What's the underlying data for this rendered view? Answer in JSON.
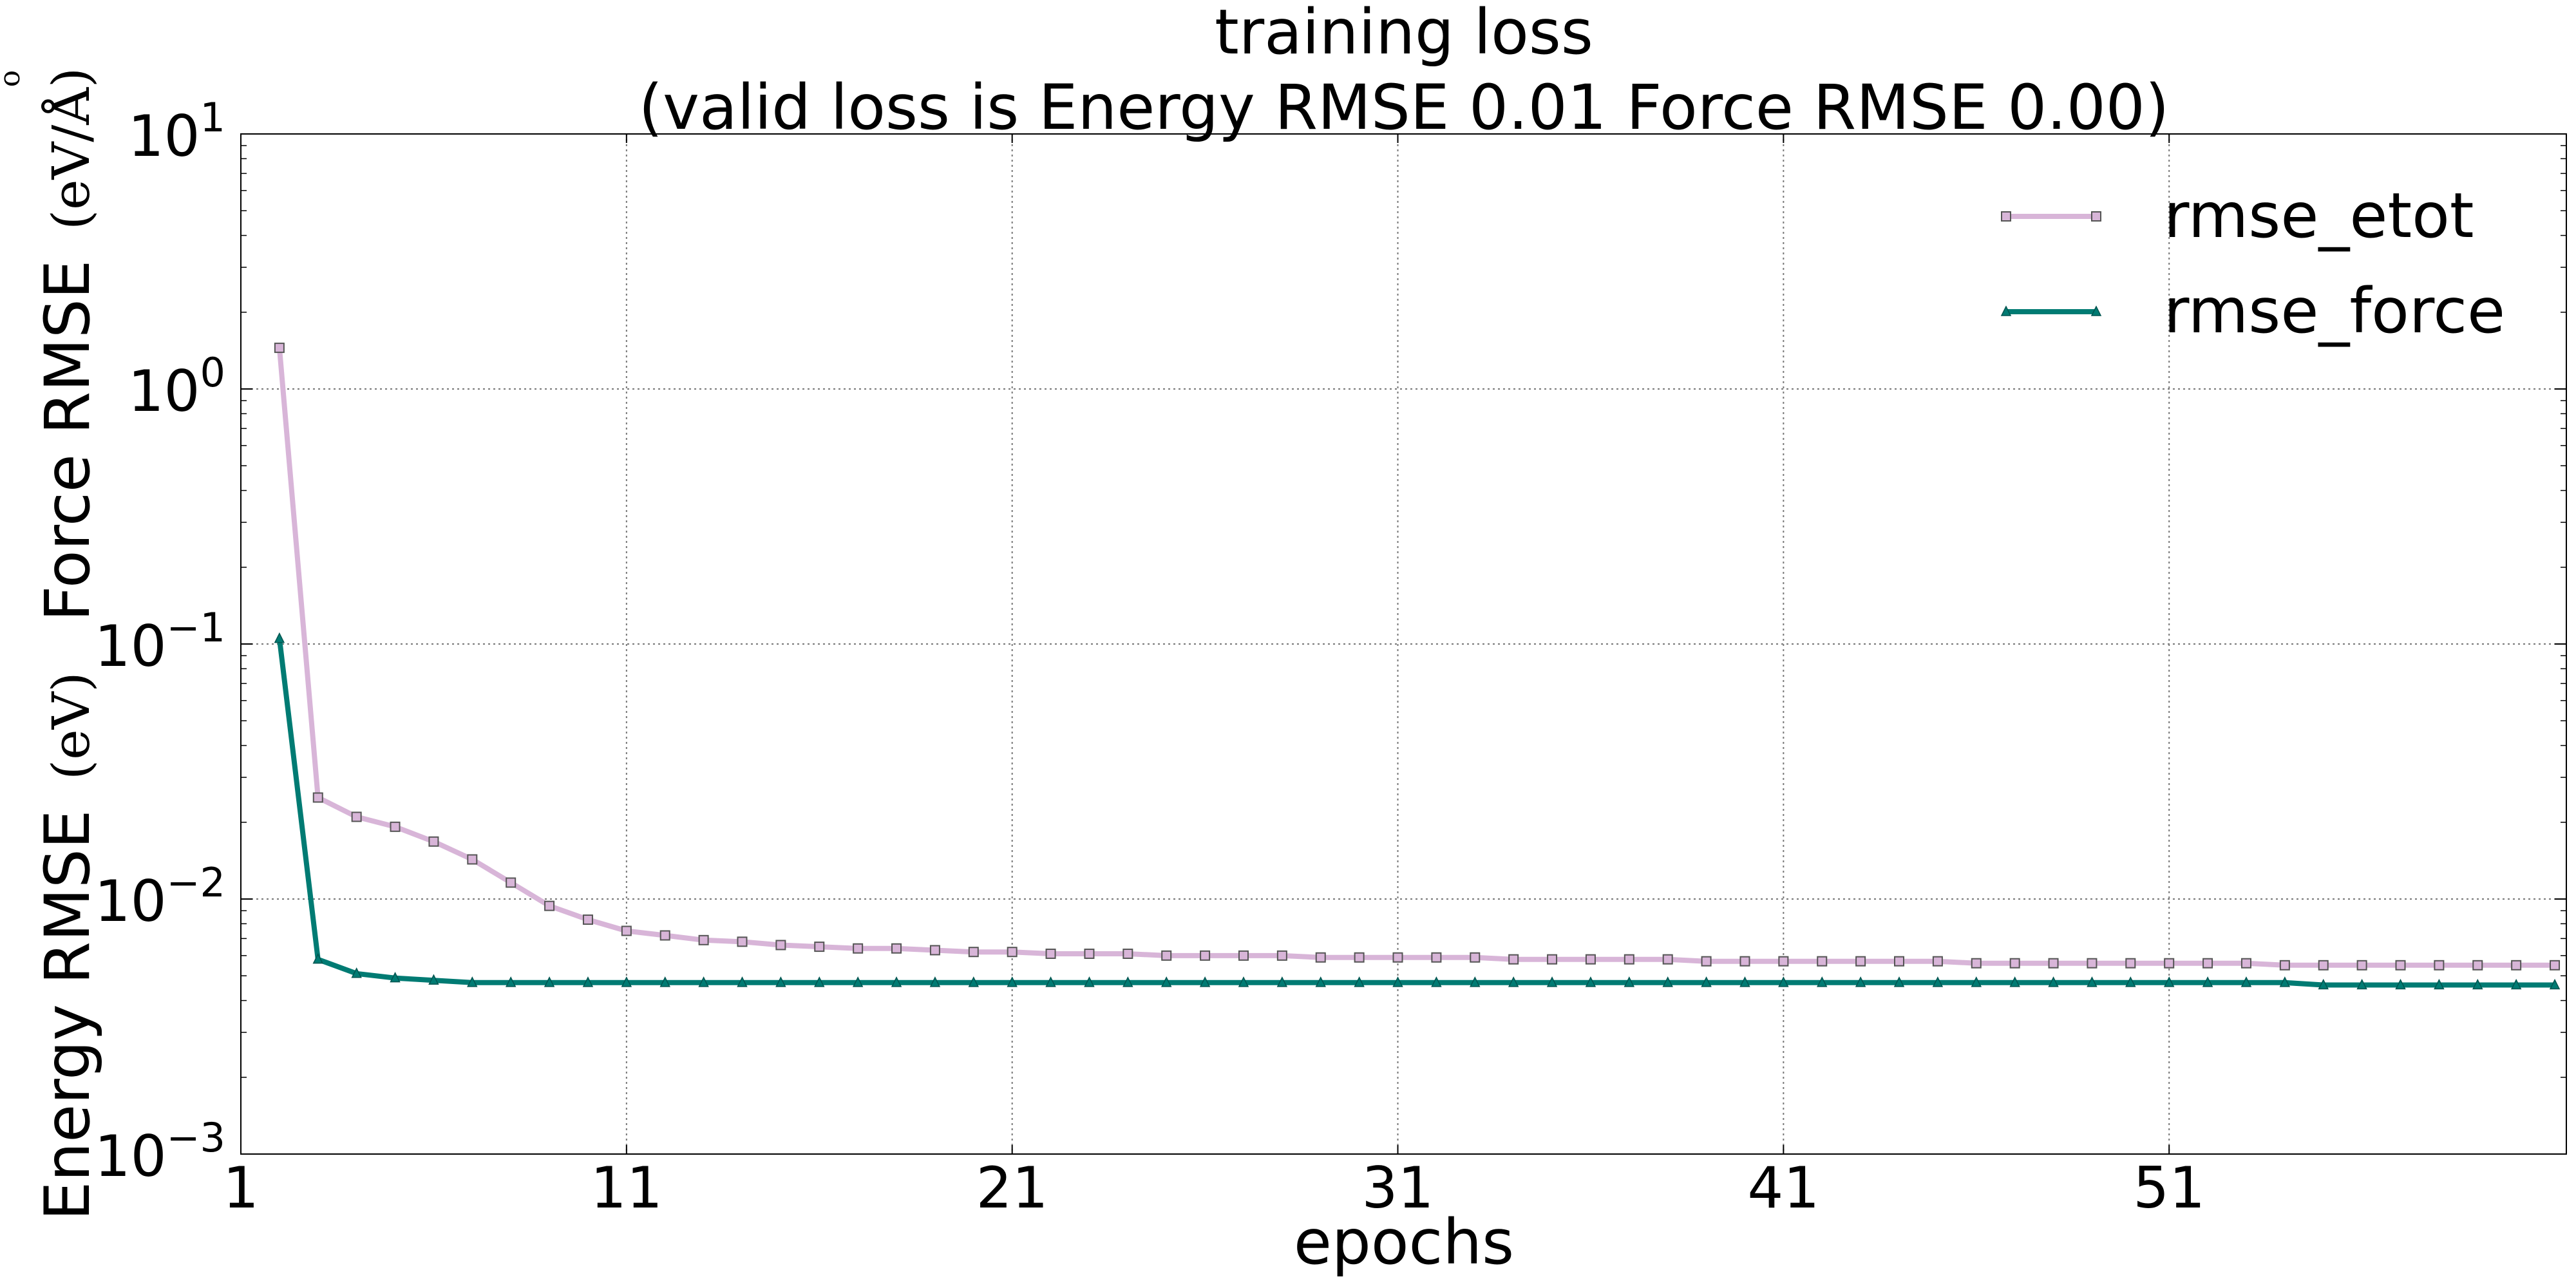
{
  "chart_data": {
    "type": "line",
    "title": "training loss",
    "subtitle": "(valid loss is Energy RMSE 0.01  Force RMSE 0.00)",
    "xlabel": "epochs",
    "ylabel_text": "Energy RMSE",
    "ylabel_unit_energy": "(eV)",
    "ylabel_text2": "Force RMSE",
    "ylabel_unit_force": "(eV/Å)",
    "ylabel_unit_force_ring": "o",
    "xlim": [
      1,
      61.3
    ],
    "ylim": [
      0.001,
      10
    ],
    "yscale": "log",
    "grid": true,
    "legend_position": "top-right",
    "x_ticks": [
      1,
      11,
      21,
      31,
      41,
      51
    ],
    "x_tick_labels": [
      "1",
      "11",
      "21",
      "31",
      "41",
      "51"
    ],
    "y_ticks": [
      0.001,
      0.01,
      0.1,
      1,
      10
    ],
    "y_tick_labels": [
      {
        "base": "10",
        "exp": "−3"
      },
      {
        "base": "10",
        "exp": "−2"
      },
      {
        "base": "10",
        "exp": "−1"
      },
      {
        "base": "10",
        "exp": "0"
      },
      {
        "base": "10",
        "exp": "1"
      }
    ],
    "series": [
      {
        "name": "rmse_etot",
        "color": "#d8b5d8",
        "marker": "square",
        "x": [
          2,
          3,
          4,
          5,
          6,
          7,
          8,
          9,
          10,
          11,
          12,
          13,
          14,
          15,
          16,
          17,
          18,
          19,
          20,
          21,
          22,
          23,
          24,
          25,
          26,
          27,
          28,
          29,
          30,
          31,
          32,
          33,
          34,
          35,
          36,
          37,
          38,
          39,
          40,
          41,
          42,
          43,
          44,
          45,
          46,
          47,
          48,
          49,
          50,
          51,
          52,
          53,
          54,
          55,
          56,
          57,
          58,
          59,
          60,
          61
        ],
        "values": [
          1.45,
          0.025,
          0.021,
          0.0192,
          0.0168,
          0.0143,
          0.0116,
          0.0094,
          0.0083,
          0.0075,
          0.0072,
          0.0069,
          0.0068,
          0.0066,
          0.0065,
          0.0064,
          0.0064,
          0.0063,
          0.0062,
          0.0062,
          0.0061,
          0.0061,
          0.0061,
          0.006,
          0.006,
          0.006,
          0.006,
          0.0059,
          0.0059,
          0.0059,
          0.0059,
          0.0059,
          0.0058,
          0.0058,
          0.0058,
          0.0058,
          0.0058,
          0.0057,
          0.0057,
          0.0057,
          0.0057,
          0.0057,
          0.0057,
          0.0057,
          0.0056,
          0.0056,
          0.0056,
          0.0056,
          0.0056,
          0.0056,
          0.0056,
          0.0056,
          0.0055,
          0.0055,
          0.0055,
          0.0055,
          0.0055,
          0.0055,
          0.0055,
          0.0055
        ]
      },
      {
        "name": "rmse_force",
        "color": "#007b73",
        "marker": "triangle",
        "x": [
          2,
          3,
          4,
          5,
          6,
          7,
          8,
          9,
          10,
          11,
          12,
          13,
          14,
          15,
          16,
          17,
          18,
          19,
          20,
          21,
          22,
          23,
          24,
          25,
          26,
          27,
          28,
          29,
          30,
          31,
          32,
          33,
          34,
          35,
          36,
          37,
          38,
          39,
          40,
          41,
          42,
          43,
          44,
          45,
          46,
          47,
          48,
          49,
          50,
          51,
          52,
          53,
          54,
          55,
          56,
          57,
          58,
          59,
          60,
          61
        ],
        "values": [
          0.105,
          0.0058,
          0.0051,
          0.0049,
          0.0048,
          0.0047,
          0.0047,
          0.0047,
          0.0047,
          0.0047,
          0.0047,
          0.0047,
          0.0047,
          0.0047,
          0.0047,
          0.0047,
          0.0047,
          0.0047,
          0.0047,
          0.0047,
          0.0047,
          0.0047,
          0.0047,
          0.0047,
          0.0047,
          0.0047,
          0.0047,
          0.0047,
          0.0047,
          0.0047,
          0.0047,
          0.0047,
          0.0047,
          0.0047,
          0.0047,
          0.0047,
          0.0047,
          0.0047,
          0.0047,
          0.0047,
          0.0047,
          0.0047,
          0.0047,
          0.0047,
          0.0047,
          0.0047,
          0.0047,
          0.0047,
          0.0047,
          0.0047,
          0.0047,
          0.0047,
          0.0047,
          0.0046,
          0.0046,
          0.0046,
          0.0046,
          0.0046,
          0.0046,
          0.0046
        ]
      }
    ]
  }
}
